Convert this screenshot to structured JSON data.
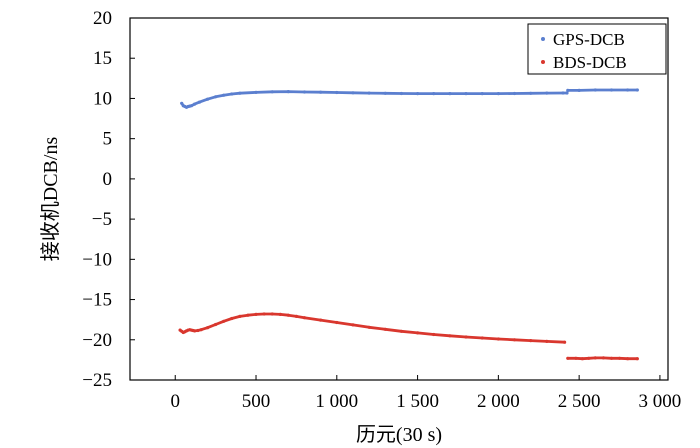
{
  "chart_data": {
    "type": "scatter",
    "title": "",
    "xlabel": "历元(30 s)",
    "ylabel": "接收机DCB/ns",
    "xlim": [
      -280,
      3050
    ],
    "ylim": [
      -25,
      20
    ],
    "xticks": [
      0,
      500,
      1000,
      1500,
      2000,
      2500,
      3000
    ],
    "xtick_labels": [
      "0",
      "500",
      "1 000",
      "1 500",
      "2 000",
      "2 500",
      "3 000"
    ],
    "yticks": [
      20,
      15,
      10,
      5,
      0,
      -5,
      -10,
      -15,
      -20,
      -25
    ],
    "ytick_labels": [
      "20",
      "15",
      "10",
      "5",
      "0",
      "−5",
      "−10",
      "−15",
      "−20",
      "−25"
    ],
    "grid": false,
    "legend_position": "top-right",
    "series": [
      {
        "name": "GPS-DCB",
        "color": "#5b7fcf",
        "segments": [
          {
            "x": [
              40,
              50,
              60,
              70,
              80,
              90,
              100,
              120,
              150,
              200,
              250,
              300,
              350,
              400,
              500,
              600,
              700,
              800,
              900,
              1000,
              1100,
              1200,
              1300,
              1400,
              1500,
              1600,
              1700,
              1800,
              1900,
              2000,
              2100,
              2200,
              2300,
              2400,
              2425
            ],
            "y": [
              9.4,
              9.1,
              9.0,
              8.9,
              9.0,
              9.05,
              9.1,
              9.3,
              9.55,
              9.9,
              10.2,
              10.4,
              10.55,
              10.65,
              10.75,
              10.82,
              10.85,
              10.8,
              10.78,
              10.74,
              10.7,
              10.67,
              10.64,
              10.62,
              10.6,
              10.6,
              10.6,
              10.6,
              10.6,
              10.6,
              10.62,
              10.64,
              10.66,
              10.68,
              10.68
            ]
          },
          {
            "x": [
              2430,
              2500,
              2600,
              2700,
              2800,
              2860
            ],
            "y": [
              11.0,
              11.0,
              11.05,
              11.05,
              11.05,
              11.05
            ]
          }
        ]
      },
      {
        "name": "BDS-DCB",
        "color": "#d9372e",
        "segments": [
          {
            "x": [
              30,
              40,
              50,
              60,
              70,
              80,
              90,
              100,
              110,
              120,
              140,
              160,
              200,
              250,
              300,
              350,
              400,
              450,
              500,
              550,
              600,
              650,
              700,
              750,
              800,
              900,
              1000,
              1100,
              1200,
              1300,
              1400,
              1500,
              1600,
              1700,
              1800,
              1900,
              2000,
              2100,
              2200,
              2300,
              2410
            ],
            "y": [
              -18.8,
              -18.95,
              -19.1,
              -19.0,
              -18.9,
              -18.8,
              -18.75,
              -18.8,
              -18.85,
              -18.9,
              -18.85,
              -18.75,
              -18.5,
              -18.1,
              -17.7,
              -17.35,
              -17.1,
              -16.95,
              -16.85,
              -16.8,
              -16.8,
              -16.85,
              -16.95,
              -17.1,
              -17.25,
              -17.55,
              -17.85,
              -18.15,
              -18.45,
              -18.7,
              -18.95,
              -19.15,
              -19.35,
              -19.5,
              -19.65,
              -19.78,
              -19.9,
              -20.0,
              -20.1,
              -20.2,
              -20.3
            ]
          },
          {
            "x": [
              2430,
              2480,
              2520,
              2560,
              2600,
              2650,
              2700,
              2750,
              2800,
              2860
            ],
            "y": [
              -22.3,
              -22.3,
              -22.35,
              -22.3,
              -22.25,
              -22.25,
              -22.3,
              -22.3,
              -22.35,
              -22.35
            ]
          }
        ]
      }
    ]
  }
}
